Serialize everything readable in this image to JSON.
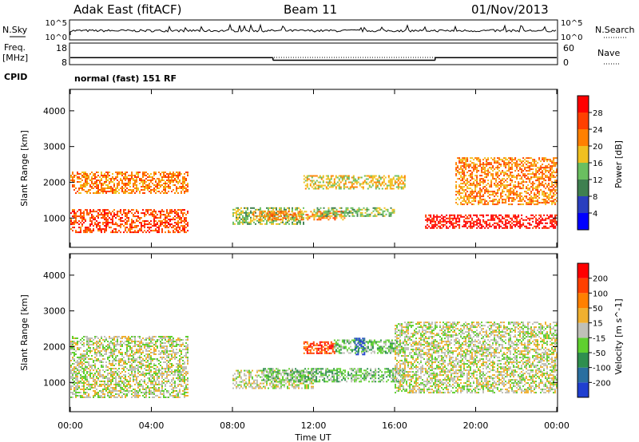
{
  "header": {
    "site": "Adak East (fitACF)",
    "beam": "Beam 11",
    "date": "01/Nov/2013"
  },
  "sky_panel": {
    "left_label": "N.Sky",
    "right_label": "N.Search",
    "top_tick": "10^5",
    "bottom_tick": "10^0"
  },
  "freq_panel": {
    "left_label_1": "Freq.",
    "left_label_2": "[MHz]",
    "right_label": "Nave",
    "freq_ticks": [
      "18",
      "8"
    ],
    "nave_ticks": [
      "60",
      "0"
    ],
    "freq_segments": [
      {
        "x0": 0.0,
        "x1": 10.0,
        "value": 11.5
      },
      {
        "x0": 10.0,
        "x1": 18.0,
        "value": 10.2
      },
      {
        "x0": 18.0,
        "x1": 24.0,
        "value": 11.5
      }
    ]
  },
  "cpid": {
    "label": "CPID",
    "text": "normal (fast) 151 RF"
  },
  "x_axis": {
    "title": "Time UT",
    "ticks": [
      "00:00",
      "04:00",
      "08:00",
      "12:00",
      "16:00",
      "20:00",
      "00:00"
    ],
    "range_hours": [
      0,
      24
    ]
  },
  "power_panel": {
    "ylabel": "Slant Range [km]",
    "yticks": [
      "1000",
      "2000",
      "3000",
      "4000"
    ],
    "colorbar_label": "Power [dB]",
    "colorbar_ticks": [
      "28",
      "24",
      "20",
      "16",
      "12",
      "8",
      "4"
    ],
    "colors": [
      "#0000ff",
      "#2a3fbf",
      "#3f8050",
      "#6abf60",
      "#f0c020",
      "#ff8000",
      "#ff4000",
      "#ff0000"
    ]
  },
  "velocity_panel": {
    "ylabel": "Slant Range [km]",
    "yticks": [
      "1000",
      "2000",
      "3000",
      "4000"
    ],
    "colorbar_label": "Velocity [m s^-1]",
    "colorbar_ticks": [
      "200",
      "100",
      "50",
      "15",
      "-15",
      "-50",
      "-100",
      "-200"
    ],
    "colors": [
      "#1f3fd0",
      "#2a6fa0",
      "#2f8f4f",
      "#5fd030",
      "#c0c0b8",
      "#f0b030",
      "#ff8000",
      "#ff4000",
      "#ff0000"
    ]
  },
  "chart_data": [
    {
      "type": "heatmap",
      "title": "Power [dB]",
      "xlabel": "Time UT",
      "ylabel": "Slant Range [km]",
      "xlim": [
        0,
        24
      ],
      "ylim": [
        180,
        4600
      ],
      "bands": [
        {
          "t0": 0.0,
          "t1": 5.8,
          "r0": 600,
          "r1": 1250,
          "level": 6
        },
        {
          "t0": 0.0,
          "t1": 5.8,
          "r0": 1700,
          "r1": 2300,
          "level": 5
        },
        {
          "t0": 8.0,
          "t1": 11.5,
          "r0": 850,
          "r1": 1300,
          "level": 3
        },
        {
          "t0": 9.0,
          "t1": 13.5,
          "r0": 950,
          "r1": 1200,
          "level": 5
        },
        {
          "t0": 11.5,
          "t1": 16.5,
          "r0": 1800,
          "r1": 2200,
          "level": 4
        },
        {
          "t0": 12.0,
          "t1": 16.0,
          "r0": 1050,
          "r1": 1300,
          "level": 3
        },
        {
          "t0": 17.5,
          "t1": 24.0,
          "r0": 700,
          "r1": 1100,
          "level": 7
        },
        {
          "t0": 19.0,
          "t1": 24.0,
          "r0": 1400,
          "r1": 2700,
          "level": 5
        }
      ]
    },
    {
      "type": "heatmap",
      "title": "Velocity [m s^-1]",
      "xlabel": "Time UT",
      "ylabel": "Slant Range [km]",
      "xlim": [
        0,
        24
      ],
      "ylim": [
        180,
        4600
      ],
      "bands": [
        {
          "t0": 0.0,
          "t1": 5.8,
          "r0": 600,
          "r1": 2300,
          "level": 4
        },
        {
          "t0": 8.0,
          "t1": 12.0,
          "r0": 850,
          "r1": 1350,
          "level": 4
        },
        {
          "t0": 9.5,
          "t1": 16.5,
          "r0": 1000,
          "r1": 1400,
          "level": 3
        },
        {
          "t0": 11.5,
          "t1": 13.0,
          "r0": 1800,
          "r1": 2150,
          "level": 7
        },
        {
          "t0": 13.0,
          "t1": 16.5,
          "r0": 1800,
          "r1": 2200,
          "level": 3
        },
        {
          "t0": 14.0,
          "t1": 14.5,
          "r0": 1800,
          "r1": 2250,
          "level": 0
        },
        {
          "t0": 16.0,
          "t1": 24.0,
          "r0": 700,
          "r1": 2700,
          "level": 4
        }
      ]
    }
  ]
}
